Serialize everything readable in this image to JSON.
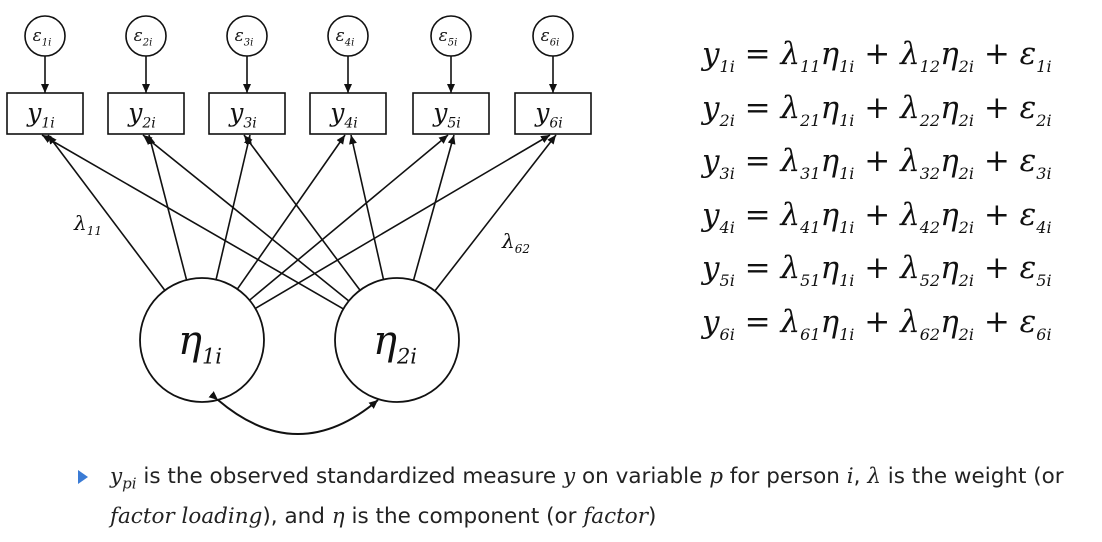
{
  "diagram": {
    "errors": [
      {
        "sym": "ε",
        "sub": "1i"
      },
      {
        "sym": "ε",
        "sub": "2i"
      },
      {
        "sym": "ε",
        "sub": "3i"
      },
      {
        "sym": "ε",
        "sub": "4i"
      },
      {
        "sym": "ε",
        "sub": "5i"
      },
      {
        "sym": "ε",
        "sub": "6i"
      }
    ],
    "observed": [
      {
        "sym": "y",
        "sub": "1i"
      },
      {
        "sym": "y",
        "sub": "2i"
      },
      {
        "sym": "y",
        "sub": "3i"
      },
      {
        "sym": "y",
        "sub": "4i"
      },
      {
        "sym": "y",
        "sub": "5i"
      },
      {
        "sym": "y",
        "sub": "6i"
      }
    ],
    "factors": [
      {
        "sym": "η",
        "sub": "1i"
      },
      {
        "sym": "η",
        "sub": "2i"
      }
    ],
    "loading_labels": [
      {
        "sym": "λ",
        "sub": "11"
      },
      {
        "sym": "λ",
        "sub": "62"
      }
    ]
  },
  "equations": [
    {
      "y": "y",
      "ysub": "1i",
      "l1": "λ",
      "l1sub": "11",
      "e1": "η",
      "e1sub": "1i",
      "l2": "λ",
      "l2sub": "12",
      "e2": "η",
      "e2sub": "2i",
      "err": "ε",
      "errsub": "1i"
    },
    {
      "y": "y",
      "ysub": "2i",
      "l1": "λ",
      "l1sub": "21",
      "e1": "η",
      "e1sub": "1i",
      "l2": "λ",
      "l2sub": "22",
      "e2": "η",
      "e2sub": "2i",
      "err": "ε",
      "errsub": "2i"
    },
    {
      "y": "y",
      "ysub": "3i",
      "l1": "λ",
      "l1sub": "31",
      "e1": "η",
      "e1sub": "1i",
      "l2": "λ",
      "l2sub": "32",
      "e2": "η",
      "e2sub": "2i",
      "err": "ε",
      "errsub": "3i"
    },
    {
      "y": "y",
      "ysub": "4i",
      "l1": "λ",
      "l1sub": "41",
      "e1": "η",
      "e1sub": "1i",
      "l2": "λ",
      "l2sub": "42",
      "e2": "η",
      "e2sub": "2i",
      "err": "ε",
      "errsub": "4i"
    },
    {
      "y": "y",
      "ysub": "5i",
      "l1": "λ",
      "l1sub": "51",
      "e1": "η",
      "e1sub": "1i",
      "l2": "λ",
      "l2sub": "52",
      "e2": "η",
      "e2sub": "2i",
      "err": "ε",
      "errsub": "5i"
    },
    {
      "y": "y",
      "ysub": "6i",
      "l1": "λ",
      "l1sub": "61",
      "e1": "η",
      "e1sub": "1i",
      "l2": "λ",
      "l2sub": "62",
      "e2": "η",
      "e2sub": "2i",
      "err": "ε",
      "errsub": "6i"
    }
  ],
  "bullet": {
    "ypi": "y",
    "ypi_sub": "pi",
    "t1": "is the observed standardized measure",
    "var_y": "y",
    "t2": "on variable",
    "var_p": "p",
    "t3": "for person",
    "var_i": "i",
    "t4": ",",
    "var_lambda": "λ",
    "t5": "is the weight (or",
    "fl": "factor loading",
    "t6": "), and",
    "var_eta": "η",
    "t7": "is the component (or",
    "fac": "factor",
    "t8": ")"
  },
  "colors": {
    "accent": "#3a7bd5",
    "ink": "#111111"
  }
}
